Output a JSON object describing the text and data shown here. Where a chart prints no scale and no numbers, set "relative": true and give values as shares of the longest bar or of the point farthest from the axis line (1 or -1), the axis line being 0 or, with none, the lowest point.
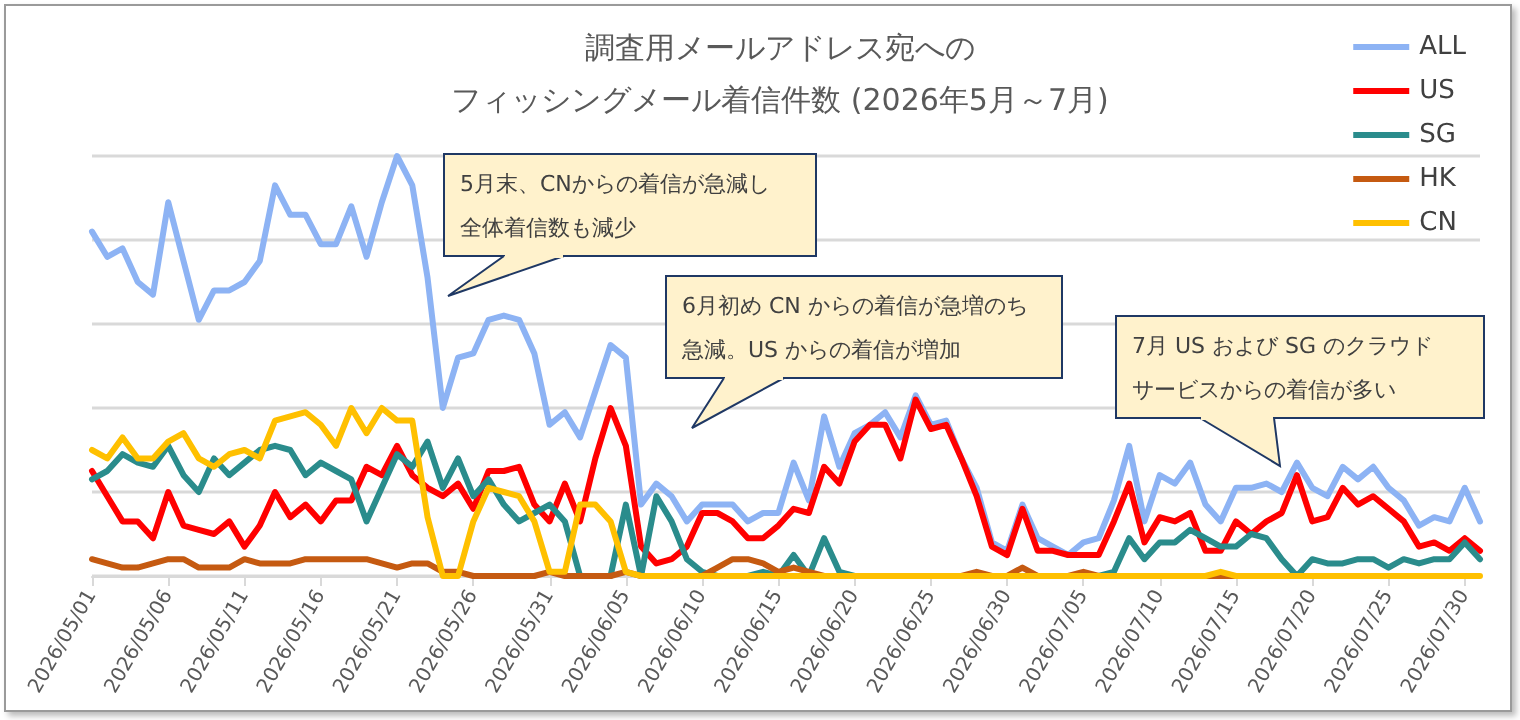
{
  "chart_data": {
    "type": "line",
    "title": "調査用メールアドレス宛へのフィッシングメール着信件数 (2026年5月～7月)",
    "categories": [
      "2026/05/01",
      null,
      null,
      null,
      null,
      "2026/05/06",
      null,
      null,
      null,
      null,
      "2026/05/11",
      null,
      null,
      null,
      null,
      "2026/05/16",
      null,
      null,
      null,
      null,
      "2026/05/21",
      null,
      null,
      null,
      null,
      "2026/05/26",
      null,
      null,
      null,
      null,
      "2026/05/31",
      null,
      null,
      null,
      null,
      "2026/06/05",
      null,
      null,
      null,
      null,
      "2026/06/10",
      null,
      null,
      null,
      null,
      "2026/06/15",
      null,
      null,
      null,
      null,
      "2026/06/20",
      null,
      null,
      null,
      null,
      "2026/06/25",
      null,
      null,
      null,
      null,
      "2026/06/30",
      null,
      null,
      null,
      null,
      "2026/07/05",
      null,
      null,
      null,
      null,
      "2026/07/10",
      null,
      null,
      null,
      null,
      "2026/07/15",
      null,
      null,
      null,
      null,
      "2026/07/20",
      null,
      null,
      null,
      null,
      "2026/07/25",
      null,
      null,
      null,
      null,
      "2026/07/30",
      null
    ],
    "relative": true,
    "series": [
      {
        "name": "ALL",
        "color": "#8db3f4",
        "values": [
          0.82,
          0.76,
          0.78,
          0.7,
          0.67,
          0.89,
          0.75,
          0.61,
          0.68,
          0.68,
          0.7,
          0.75,
          0.93,
          0.86,
          0.86,
          0.79,
          0.79,
          0.88,
          0.76,
          0.89,
          1.0,
          0.93,
          0.71,
          0.4,
          0.52,
          0.53,
          0.61,
          0.62,
          0.61,
          0.53,
          0.36,
          0.39,
          0.33,
          0.44,
          0.55,
          0.52,
          0.17,
          0.22,
          0.19,
          0.13,
          0.17,
          0.17,
          0.17,
          0.13,
          0.15,
          0.15,
          0.27,
          0.18,
          0.38,
          0.26,
          0.34,
          0.36,
          0.39,
          0.33,
          0.43,
          0.36,
          0.37,
          0.28,
          0.21,
          0.08,
          0.06,
          0.17,
          0.09,
          0.07,
          0.05,
          0.08,
          0.09,
          0.18,
          0.31,
          0.13,
          0.24,
          0.22,
          0.27,
          0.17,
          0.13,
          0.21,
          0.21,
          0.22,
          0.2,
          0.27,
          0.21,
          0.19,
          0.26,
          0.23,
          0.26,
          0.21,
          0.18,
          0.12,
          0.14,
          0.13,
          0.21,
          0.13
        ]
      },
      {
        "name": "US",
        "color": "#ff0000",
        "values": [
          0.25,
          0.19,
          0.13,
          0.13,
          0.09,
          0.2,
          0.12,
          0.11,
          0.1,
          0.13,
          0.07,
          0.12,
          0.2,
          0.14,
          0.17,
          0.13,
          0.18,
          0.18,
          0.26,
          0.24,
          0.31,
          0.24,
          0.21,
          0.19,
          0.22,
          0.16,
          0.25,
          0.25,
          0.26,
          0.17,
          0.13,
          0.22,
          0.13,
          0.28,
          0.4,
          0.31,
          0.07,
          0.03,
          0.04,
          0.07,
          0.15,
          0.15,
          0.13,
          0.09,
          0.09,
          0.12,
          0.16,
          0.15,
          0.26,
          0.22,
          0.32,
          0.36,
          0.36,
          0.28,
          0.42,
          0.35,
          0.36,
          0.28,
          0.19,
          0.07,
          0.05,
          0.16,
          0.06,
          0.06,
          0.05,
          0.05,
          0.05,
          0.13,
          0.22,
          0.08,
          0.14,
          0.13,
          0.15,
          0.06,
          0.06,
          0.13,
          0.1,
          0.13,
          0.15,
          0.24,
          0.13,
          0.14,
          0.21,
          0.17,
          0.19,
          0.16,
          0.13,
          0.07,
          0.08,
          0.06,
          0.09,
          0.06
        ]
      },
      {
        "name": "SG",
        "color": "#2a8c8c",
        "values": [
          0.23,
          0.25,
          0.29,
          0.27,
          0.26,
          0.31,
          0.24,
          0.2,
          0.28,
          0.24,
          0.27,
          0.3,
          0.31,
          0.3,
          0.24,
          0.27,
          0.25,
          0.23,
          0.13,
          0.21,
          0.29,
          0.26,
          0.32,
          0.21,
          0.28,
          0.19,
          0.23,
          0.17,
          0.13,
          0.15,
          0.17,
          0.13,
          0,
          0,
          0,
          0.17,
          0,
          0.19,
          0.13,
          0.04,
          0.01,
          0,
          0,
          0,
          0.01,
          0,
          0.05,
          0,
          0.09,
          0.01,
          0,
          0,
          0,
          0,
          0,
          0,
          0,
          0,
          0,
          0,
          0,
          0,
          0,
          0,
          0,
          0,
          0,
          0.01,
          0.09,
          0.04,
          0.08,
          0.08,
          0.11,
          0.09,
          0.07,
          0.07,
          0.1,
          0.09,
          0.04,
          0,
          0.04,
          0.03,
          0.03,
          0.04,
          0.04,
          0.02,
          0.04,
          0.03,
          0.04,
          0.04,
          0.08,
          0.04
        ]
      },
      {
        "name": "HK",
        "color": "#c55a11",
        "values": [
          0.04,
          0.03,
          0.02,
          0.02,
          0.03,
          0.04,
          0.04,
          0.02,
          0.02,
          0.02,
          0.04,
          0.03,
          0.03,
          0.03,
          0.04,
          0.04,
          0.04,
          0.04,
          0.04,
          0.03,
          0.02,
          0.03,
          0.03,
          0.01,
          0.01,
          0,
          0,
          0,
          0,
          0,
          0.01,
          0,
          0,
          0,
          0,
          0.01,
          0,
          0,
          0,
          0,
          0,
          0.02,
          0.04,
          0.04,
          0.03,
          0.01,
          0.02,
          0.01,
          0,
          0,
          0,
          0,
          0,
          0,
          0,
          0,
          0,
          0,
          0.01,
          0,
          0,
          0.02,
          0,
          0,
          0,
          0.01,
          0,
          0,
          0,
          0,
          0,
          0,
          0,
          0,
          0,
          0,
          0,
          null,
          null,
          null,
          null,
          null,
          null,
          null,
          null,
          null,
          null,
          null,
          null,
          null,
          null,
          null
        ]
      },
      {
        "name": "CN",
        "color": "#ffc000",
        "values": [
          0.3,
          0.28,
          0.33,
          0.28,
          0.28,
          0.32,
          0.34,
          0.28,
          0.26,
          0.29,
          0.3,
          0.28,
          0.37,
          0.38,
          0.39,
          0.36,
          0.31,
          0.4,
          0.34,
          0.4,
          0.37,
          0.37,
          0.14,
          0,
          0,
          0.13,
          0.21,
          0.2,
          0.19,
          0.13,
          0.01,
          0.01,
          0.17,
          0.17,
          0.13,
          0.01,
          0,
          0,
          0,
          0,
          0,
          0,
          0,
          0,
          0,
          0,
          0,
          0,
          0,
          0,
          0,
          0,
          0,
          0,
          0,
          0,
          0,
          0,
          0,
          0,
          0,
          0,
          0,
          0,
          0,
          0,
          0,
          0,
          0,
          0,
          0,
          0,
          0,
          0,
          0.01,
          0,
          0,
          0,
          0,
          0,
          0,
          0,
          0,
          0,
          0,
          0,
          0,
          0,
          0,
          0,
          0,
          0
        ]
      }
    ],
    "annotations": [
      "5月末、CNからの着信が急減し全体着信数も減少",
      "6月初め CN からの着信が急増のち急減。US からの着信が増加",
      "7月 US および SG のクラウドサービスからの着信が多い"
    ],
    "grid": "y",
    "legend": "top right",
    "marker": "none",
    "line_style": "solid"
  }
}
